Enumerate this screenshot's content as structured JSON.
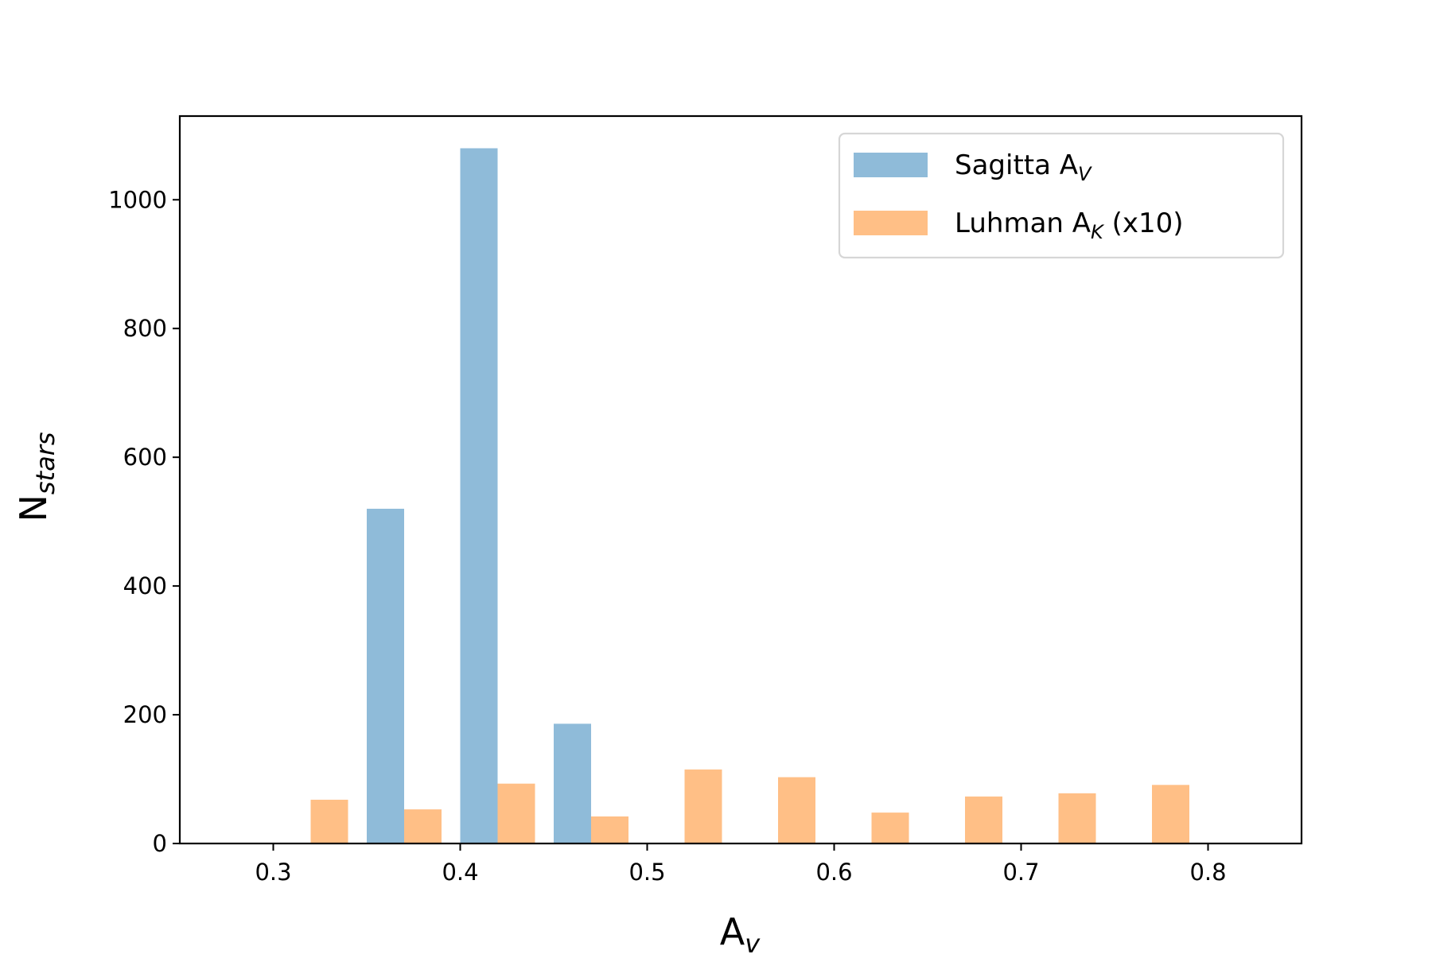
{
  "chart_data": {
    "type": "bar",
    "xlabel": {
      "main": "A",
      "sub": "v"
    },
    "ylabel": {
      "main": "N",
      "sub": "stars"
    },
    "xlim": [
      0.25,
      0.85
    ],
    "ylim": [
      0,
      1130
    ],
    "x_ticks": [
      "0.3",
      "0.4",
      "0.5",
      "0.6",
      "0.7",
      "0.8"
    ],
    "x_tick_values": [
      0.3,
      0.4,
      0.5,
      0.6,
      0.7,
      0.8
    ],
    "y_ticks": [
      "0",
      "200",
      "400",
      "600",
      "800",
      "1000"
    ],
    "y_tick_values": [
      0,
      200,
      400,
      600,
      800,
      1000
    ],
    "bin_width": 0.02,
    "legend_position": "top-right",
    "series": [
      {
        "legend": {
          "main": "Sagitta A",
          "sub": "V",
          "suffix": ""
        },
        "color": "#8fbbd9",
        "bars": [
          {
            "x": 0.36,
            "value": 520
          },
          {
            "x": 0.41,
            "value": 1080
          },
          {
            "x": 0.46,
            "value": 186
          },
          {
            "x": 0.51,
            "value": 1
          },
          {
            "x": 0.56,
            "value": 1
          },
          {
            "x": 0.61,
            "value": 0
          },
          {
            "x": 0.66,
            "value": 1
          }
        ]
      },
      {
        "legend": {
          "main": "Luhman A",
          "sub": "K",
          "suffix": " (x10)"
        },
        "color": "#ffbf86",
        "bars": [
          {
            "x": 0.33,
            "value": 68
          },
          {
            "x": 0.38,
            "value": 53
          },
          {
            "x": 0.43,
            "value": 93
          },
          {
            "x": 0.48,
            "value": 42
          },
          {
            "x": 0.53,
            "value": 115
          },
          {
            "x": 0.58,
            "value": 103
          },
          {
            "x": 0.63,
            "value": 48
          },
          {
            "x": 0.68,
            "value": 73
          },
          {
            "x": 0.73,
            "value": 78
          },
          {
            "x": 0.78,
            "value": 91
          }
        ]
      }
    ]
  }
}
